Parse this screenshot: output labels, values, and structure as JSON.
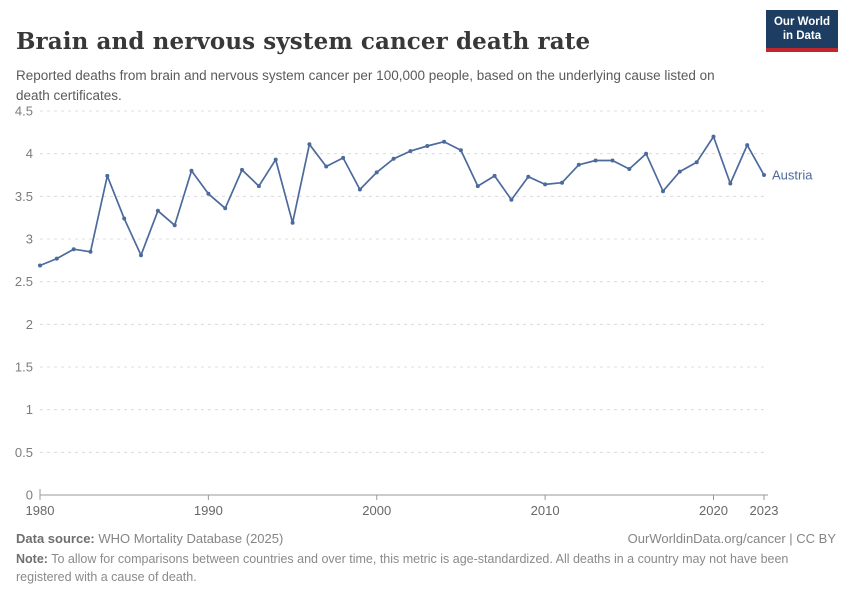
{
  "header": {
    "title": "Brain and nervous system cancer death rate",
    "subtitle": "Reported deaths from brain and nervous system cancer per 100,000 people, based on the underlying cause listed on death certificates.",
    "logo": {
      "line1": "Our World",
      "line2": "in Data",
      "bg_color": "#1d3d63",
      "accent_color": "#c0262d"
    }
  },
  "chart_data": {
    "type": "line",
    "title": "Brain and nervous system cancer death rate",
    "xlabel": "",
    "ylabel": "",
    "ylim": [
      0,
      4.5
    ],
    "yticks": [
      0,
      0.5,
      1,
      1.5,
      2,
      2.5,
      3,
      3.5,
      4,
      4.5
    ],
    "xticks": [
      1980,
      1990,
      2000,
      2010,
      2020,
      2023
    ],
    "xlim": [
      1980,
      2023
    ],
    "grid": "horizontal-dashed",
    "legend_position": "end-of-line-label",
    "line_color": "#4c6a9c",
    "grid_color": "#dcdcdc",
    "axis_color": "#999999",
    "ytick_label_color": "#7c7c7c",
    "xtick_label_color": "#686868",
    "series": [
      {
        "name": "Austria",
        "color": "#4c6a9c",
        "x": [
          1980,
          1981,
          1982,
          1983,
          1984,
          1985,
          1986,
          1987,
          1988,
          1989,
          1990,
          1991,
          1992,
          1993,
          1994,
          1995,
          1996,
          1997,
          1998,
          1999,
          2000,
          2001,
          2002,
          2003,
          2004,
          2005,
          2006,
          2007,
          2008,
          2009,
          2010,
          2011,
          2012,
          2013,
          2014,
          2015,
          2016,
          2017,
          2018,
          2019,
          2020,
          2021,
          2022,
          2023
        ],
        "values": [
          2.69,
          2.77,
          2.88,
          2.85,
          3.74,
          3.24,
          2.81,
          3.33,
          3.16,
          3.8,
          3.53,
          3.36,
          3.81,
          3.62,
          3.93,
          3.19,
          4.11,
          3.85,
          3.95,
          3.58,
          3.78,
          3.94,
          4.03,
          4.09,
          4.14,
          4.04,
          3.62,
          3.74,
          3.46,
          3.73,
          3.64,
          3.66,
          3.87,
          3.92,
          3.92,
          3.82,
          4.0,
          3.56,
          3.79,
          3.9,
          4.2,
          3.65,
          4.1,
          3.75
        ]
      }
    ]
  },
  "footer": {
    "datasource_label": "Data source:",
    "datasource_value": " WHO Mortality Database (2025)",
    "attribution": "OurWorldinData.org/cancer | CC BY",
    "note_label": "Note:",
    "note_value": " To allow for comparisons between countries and over time, this metric is age-standardized. All deaths in a country may not have been registered with a cause of death."
  }
}
